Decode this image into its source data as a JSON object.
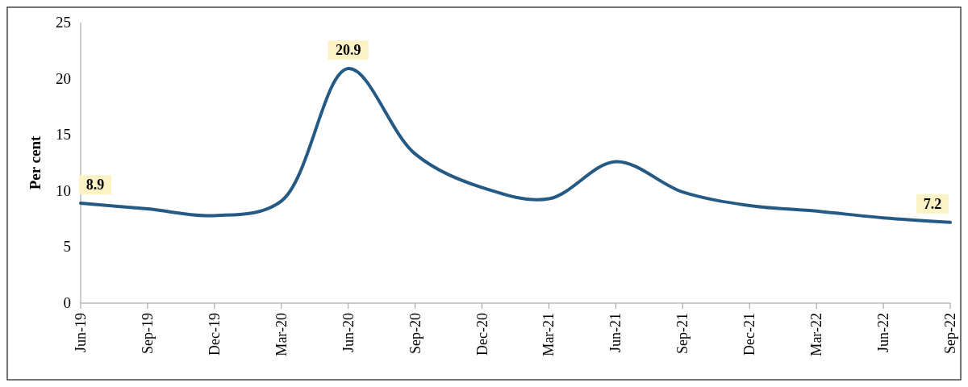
{
  "chart_data": {
    "type": "line",
    "ylabel": "Per cent",
    "categories": [
      "Jun-19",
      "Sep-19",
      "Dec-19",
      "Mar-20",
      "Jun-20",
      "Sep-20",
      "Dec-20",
      "Mar-21",
      "Jun-21",
      "Sep-21",
      "Dec-21",
      "Mar-22",
      "Jun-22",
      "Sep-22"
    ],
    "series": [
      {
        "color": "#245a84",
        "values": [
          8.9,
          8.4,
          7.8,
          9.1,
          20.9,
          13.3,
          10.3,
          9.3,
          12.6,
          9.9,
          8.7,
          8.2,
          7.6,
          7.2
        ],
        "value_labels": [
          "8.9",
          null,
          null,
          null,
          "20.9",
          null,
          null,
          null,
          null,
          null,
          null,
          null,
          null,
          "7.2"
        ]
      }
    ],
    "ylim": [
      0,
      25
    ],
    "yticks": [
      0,
      5,
      10,
      15,
      20,
      25
    ],
    "grid": false,
    "marker": "none",
    "line_style": "solid"
  }
}
